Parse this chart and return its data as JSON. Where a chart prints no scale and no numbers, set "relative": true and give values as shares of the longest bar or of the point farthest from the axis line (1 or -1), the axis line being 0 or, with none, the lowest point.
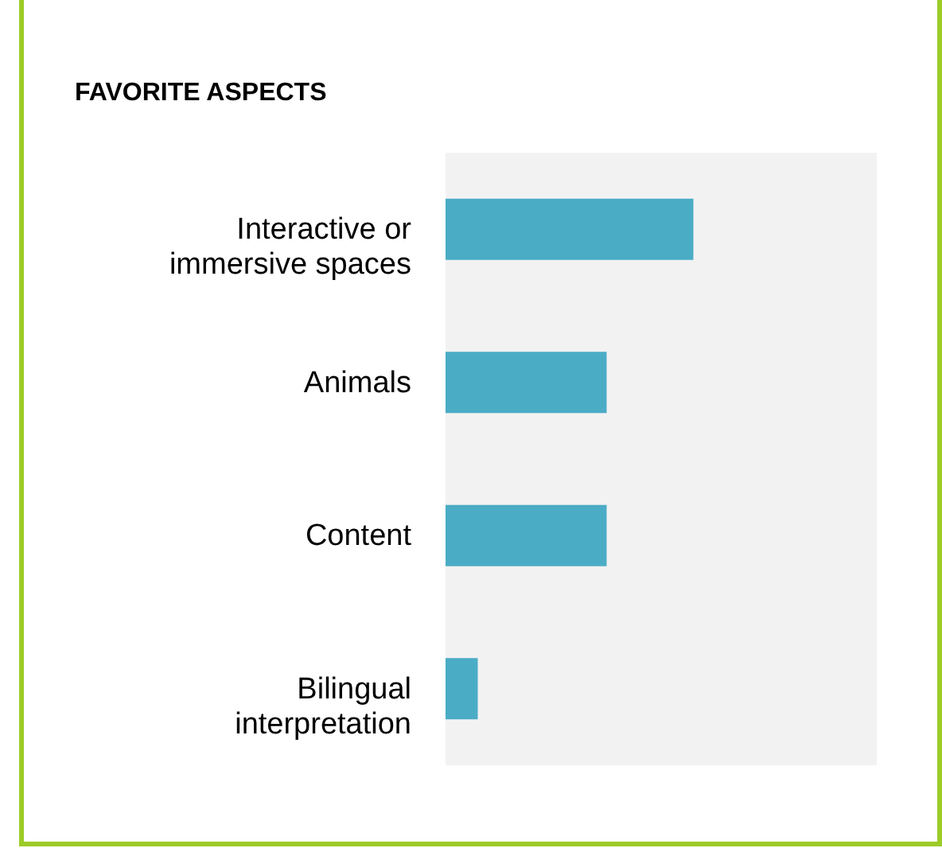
{
  "chart_data": {
    "type": "bar",
    "title": "FAVORITE ASPECTS",
    "orientation": "horizontal",
    "relative": true,
    "categories": [
      "Interactive or immersive spaces",
      "Animals",
      "Content",
      "Bilingual interpretation"
    ],
    "values": [
      1,
      0.65,
      0.65,
      0.13
    ],
    "color": "#4bacc6"
  }
}
